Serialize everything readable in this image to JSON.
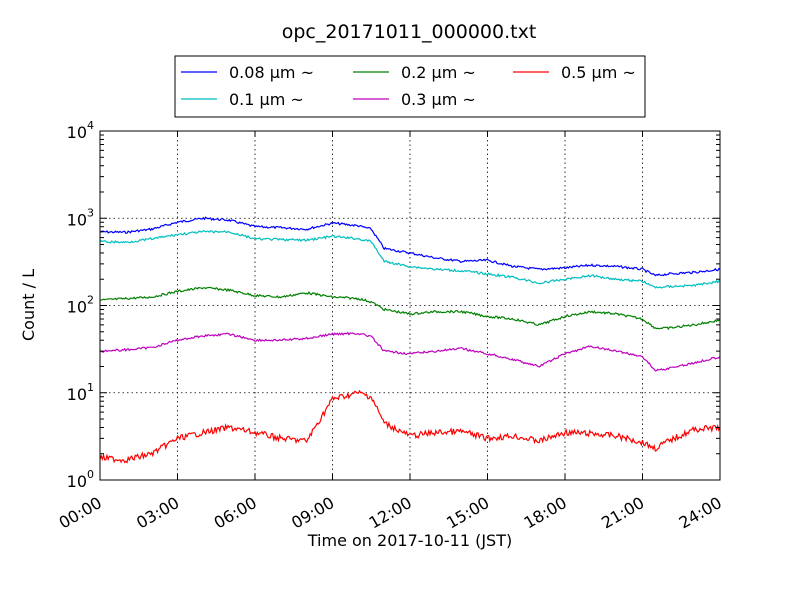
{
  "chart_data": {
    "type": "line",
    "title": "opc_20171011_000000.txt",
    "xlabel": "Time on 2017-10-11 (JST)",
    "ylabel": "Count / L",
    "yscale": "log",
    "ylim": [
      1,
      10000
    ],
    "y_ticks": [
      {
        "value": 1,
        "base": "10",
        "exp": "0"
      },
      {
        "value": 10,
        "base": "10",
        "exp": "1"
      },
      {
        "value": 100,
        "base": "10",
        "exp": "2"
      },
      {
        "value": 1000,
        "base": "10",
        "exp": "3"
      },
      {
        "value": 10000,
        "base": "10",
        "exp": "4"
      }
    ],
    "xlim": [
      "00:00",
      "24:00"
    ],
    "x_ticks": [
      "00:00",
      "03:00",
      "06:00",
      "09:00",
      "12:00",
      "15:00",
      "18:00",
      "21:00",
      "24:00"
    ],
    "grid": true,
    "legend_position": "top-center",
    "x": [
      "00:00",
      "01:00",
      "02:00",
      "03:00",
      "04:00",
      "05:00",
      "06:00",
      "07:00",
      "08:00",
      "09:00",
      "10:00",
      "10:30",
      "11:00",
      "12:00",
      "13:00",
      "14:00",
      "15:00",
      "16:00",
      "17:00",
      "18:00",
      "19:00",
      "20:00",
      "21:00",
      "21:30",
      "22:00",
      "23:00",
      "24:00"
    ],
    "series": [
      {
        "name": "0.08 μm ~",
        "color": "#0000ff",
        "values": [
          700,
          690,
          750,
          900,
          1000,
          950,
          800,
          780,
          750,
          880,
          820,
          750,
          450,
          400,
          350,
          320,
          330,
          280,
          260,
          270,
          290,
          280,
          260,
          220,
          230,
          240,
          260
        ]
      },
      {
        "name": "0.2 μm ~",
        "color": "#008000",
        "values": [
          115,
          120,
          125,
          145,
          160,
          150,
          130,
          125,
          140,
          125,
          120,
          110,
          90,
          80,
          85,
          85,
          75,
          70,
          60,
          75,
          85,
          80,
          70,
          55,
          55,
          60,
          68
        ]
      },
      {
        "name": "0.5 μm ~",
        "color": "#ff0000",
        "values": [
          1.8,
          1.7,
          2.0,
          3.0,
          3.5,
          4.0,
          3.5,
          3.0,
          2.8,
          8.5,
          10,
          9.0,
          4.5,
          3.2,
          3.5,
          3.6,
          3.0,
          3.2,
          2.8,
          3.5,
          3.4,
          3.2,
          2.7,
          2.3,
          2.8,
          3.8,
          4.0
        ]
      },
      {
        "name": "0.1 μm ~",
        "color": "#00bfbf",
        "values": [
          540,
          530,
          580,
          650,
          700,
          700,
          580,
          570,
          560,
          620,
          580,
          540,
          320,
          280,
          260,
          250,
          230,
          210,
          180,
          200,
          220,
          200,
          190,
          160,
          165,
          170,
          190
        ]
      },
      {
        "name": "0.3 μm ~",
        "color": "#bf00bf",
        "values": [
          30,
          31,
          33,
          40,
          45,
          47,
          40,
          40,
          42,
          47,
          48,
          44,
          30,
          28,
          30,
          32,
          28,
          24,
          20,
          28,
          34,
          30,
          26,
          18,
          19,
          22,
          26
        ]
      }
    ]
  }
}
